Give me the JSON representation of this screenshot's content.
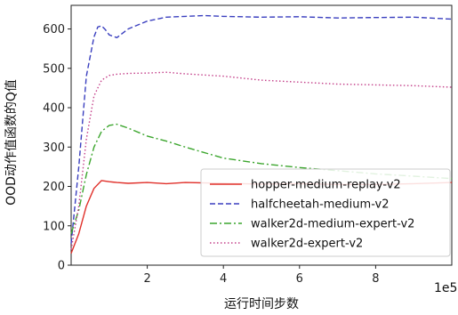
{
  "chart_data": {
    "type": "line",
    "xlabel": "运行时间步数",
    "ylabel": "OOD动作值函数的Q值",
    "x_multiplier_label": "1e5",
    "xlim": [
      0,
      10
    ],
    "ylim": [
      0,
      660
    ],
    "x_ticks": [
      2,
      4,
      6,
      8
    ],
    "x_tick_labels": [
      "2",
      "4",
      "6",
      "8"
    ],
    "y_ticks": [
      0,
      100,
      200,
      300,
      400,
      500,
      600
    ],
    "y_tick_labels": [
      "0",
      "100",
      "200",
      "300",
      "400",
      "500",
      "600"
    ],
    "grid": false,
    "legend_position": "lower-right",
    "series": [
      {
        "name": "hopper-medium-replay-v2",
        "color": "#e0302a",
        "dash": "solid",
        "x": [
          0,
          0.2,
          0.4,
          0.6,
          0.8,
          1.0,
          1.2,
          1.5,
          2.0,
          2.5,
          3,
          4,
          5,
          6,
          7,
          8,
          9,
          10
        ],
        "y": [
          30,
          80,
          150,
          195,
          215,
          212,
          210,
          208,
          210,
          207,
          210,
          208,
          206,
          207,
          205,
          205,
          207,
          210
        ]
      },
      {
        "name": "halfcheetah-medium-v2",
        "color": "#3a3fbf",
        "dash": "dashed",
        "x": [
          0,
          0.2,
          0.4,
          0.6,
          0.7,
          0.8,
          0.9,
          1.0,
          1.2,
          1.5,
          2,
          2.5,
          3,
          3.5,
          4,
          5,
          6,
          7,
          8,
          9,
          10
        ],
        "y": [
          55,
          250,
          480,
          580,
          605,
          608,
          598,
          585,
          578,
          600,
          620,
          630,
          632,
          634,
          632,
          630,
          631,
          628,
          629,
          630,
          625
        ]
      },
      {
        "name": "walker2d-medium-expert-v2",
        "color": "#3ca62e",
        "dash": "dashdot",
        "x": [
          0,
          0.2,
          0.4,
          0.6,
          0.8,
          1.0,
          1.2,
          1.5,
          2,
          2.5,
          3,
          4,
          5,
          6,
          7,
          8,
          9,
          10
        ],
        "y": [
          80,
          140,
          230,
          300,
          340,
          355,
          358,
          348,
          328,
          315,
          300,
          272,
          258,
          248,
          240,
          232,
          226,
          220
        ]
      },
      {
        "name": "walker2d-expert-v2",
        "color": "#c4408a",
        "dash": "dotted",
        "x": [
          0,
          0.2,
          0.4,
          0.6,
          0.8,
          1.0,
          1.2,
          1.5,
          2,
          2.5,
          3,
          4,
          5,
          6,
          7,
          8,
          9,
          10
        ],
        "y": [
          40,
          150,
          320,
          430,
          470,
          482,
          485,
          487,
          488,
          490,
          486,
          480,
          470,
          465,
          460,
          458,
          456,
          452
        ]
      }
    ]
  }
}
